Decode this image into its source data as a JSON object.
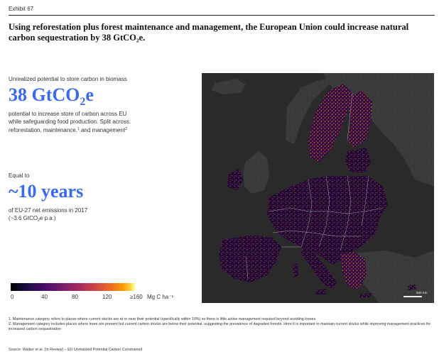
{
  "header": {
    "exhibit": "Exhibit 67",
    "title": "Using reforestation plus forest maintenance and management, the European Union could increase natural carbon sequestration by 38 GtCO₂e."
  },
  "left_panel": {
    "potential_label": "Unrealized potential to store carbon in biomass",
    "potential_big": "38 GtCO",
    "potential_big_sub": "2",
    "potential_big_suffix": "e",
    "potential_desc_line1": "potential to increase store of carbon across EU",
    "potential_desc_line2": "while safeguarding food production. Split across:",
    "potential_desc_line3a": "reforestation, maintenance,",
    "potential_desc_sup1": "1",
    "potential_desc_line3b": " and management",
    "potential_desc_sup2": "2",
    "equal_label": "Equal to",
    "equal_big": "~10 years",
    "equal_desc_line1": "of EU-27 net emissions in 2017",
    "equal_desc_line2a": "(~3.6 GtCO",
    "equal_desc_line2_sub": "2",
    "equal_desc_line2b": "e p.a.)"
  },
  "legend": {
    "ticks": [
      "0",
      "40",
      "80",
      "120",
      "≥160"
    ],
    "unit": "Mg C ha⁻¹",
    "colormap": [
      "#000004",
      "#4a0c6b",
      "#a52c60",
      "#ed6925",
      "#fcffa4"
    ]
  },
  "map": {
    "scale_label": "500 Km",
    "background_color": "#2a2a2a"
  },
  "footnotes": [
    "1. Maintenance category refers to places where current stocks are at or near their potential (specifically within 10%) so there is little active management required beyond avoiding losses",
    "2. Management category includes places where trees are present but current carbon stocks are below their potential, suggesting the prevalence of degraded forests. Here it is important to maintain current stocks while improving management practices for increased carbon sequestration"
  ],
  "source": "Source: Walker et al. (In Review) – EU Unrealized Potential Carbon Constrained"
}
